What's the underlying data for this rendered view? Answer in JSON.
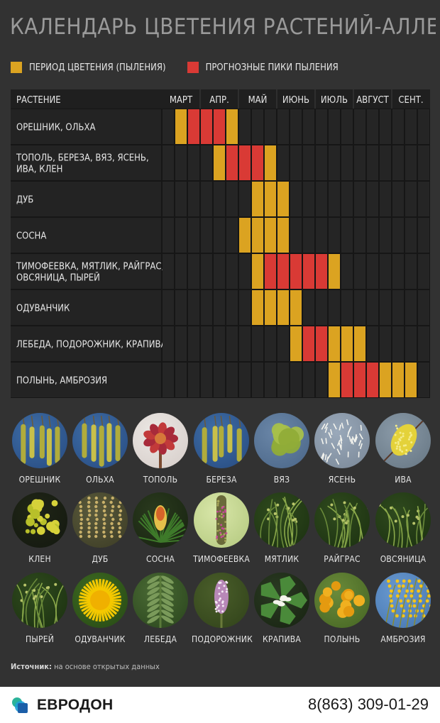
{
  "header": {
    "title": "КАЛЕНДАРЬ ЦВЕТЕНИЯ РАСТЕНИЙ-АЛЛЕРГЕНОВ"
  },
  "legend": {
    "bloom_label": "ПЕРИОД ЦВЕТЕНИЯ (ПЫЛЕНИЯ)",
    "peak_label": "ПРОГНОЗНЫЕ ПИКИ ПЫЛЕНИЯ"
  },
  "colors": {
    "bloom": "#dba321",
    "peak": "#d93a35",
    "empty": "#252525"
  },
  "chart_data": {
    "type": "table",
    "row_header": "РАСТЕНИЕ",
    "months": [
      "МАРТ",
      "АПР.",
      "МАЙ",
      "ИЮНЬ",
      "ИЮЛЬ",
      "АВГУСТ",
      "СЕНТ."
    ],
    "weeks_per_month": 3,
    "legend": {
      "B": "ПЕРИОД ЦВЕТЕНИЯ (ПЫЛЕНИЯ)",
      "P": "ПРОГНОЗНЫЕ ПИКИ ПЫЛЕНИЯ",
      "-": ""
    },
    "rows": [
      {
        "plant": [
          "ОРЕШНИК, ОЛЬХА"
        ],
        "periods": "-BPPPB---------------"
      },
      {
        "plant": [
          "ТОПОЛЬ, БЕРЕЗА, ВЯЗ, ЯСЕНЬ,",
          "ИВА, КЛЕН"
        ],
        "periods": "----BPPPB------------"
      },
      {
        "plant": [
          "ДУБ"
        ],
        "periods": "-------BBB-----------"
      },
      {
        "plant": [
          "СОСНА"
        ],
        "periods": "------BBBB-----------"
      },
      {
        "plant": [
          "ТИМОФЕЕВКА, МЯТЛИК, РАЙГРАС,",
          "ОВСЯНИЦА, ПЫРЕЙ"
        ],
        "periods": "-------BPPPPPB-------"
      },
      {
        "plant": [
          "ОДУВАНЧИК"
        ],
        "periods": "-------BBBB----------"
      },
      {
        "plant": [
          "ЛЕБЕДА, ПОДОРОЖНИК, КРАПИВА"
        ],
        "periods": "----------BPPBBB-----"
      },
      {
        "plant": [
          "ПОЛЫНЬ, АМБРОЗИЯ"
        ],
        "periods": "-------------BPPPBBB-"
      }
    ]
  },
  "gallery": [
    {
      "name": "ОРЕШНИК",
      "icon": "catkins-icon"
    },
    {
      "name": "ОЛЬХА",
      "icon": "catkins-icon"
    },
    {
      "name": "ТОПОЛЬ",
      "icon": "poplar-icon"
    },
    {
      "name": "БЕРЕЗА",
      "icon": "catkins-icon"
    },
    {
      "name": "ВЯЗ",
      "icon": "elm-icon"
    },
    {
      "name": "ЯСЕНЬ",
      "icon": "ash-icon"
    },
    {
      "name": "ИВА",
      "icon": "willow-icon"
    },
    {
      "name": "КЛЕН",
      "icon": "maple-icon"
    },
    {
      "name": "ДУБ",
      "icon": "oak-icon"
    },
    {
      "name": "СОСНА",
      "icon": "pine-icon"
    },
    {
      "name": "ТИМОФЕЕВКА",
      "icon": "spike-icon"
    },
    {
      "name": "МЯТЛИК",
      "icon": "grass-icon"
    },
    {
      "name": "РАЙГРАС",
      "icon": "grass-icon"
    },
    {
      "name": "ОВСЯНИЦА",
      "icon": "grass-icon"
    },
    {
      "name": "ПЫРЕЙ",
      "icon": "grass-icon"
    },
    {
      "name": "ОДУВАНЧИК",
      "icon": "dandelion-icon"
    },
    {
      "name": "ЛЕБЕДА",
      "icon": "orache-icon"
    },
    {
      "name": "ПОДОРОЖНИК",
      "icon": "plantain-icon"
    },
    {
      "name": "КРАПИВА",
      "icon": "nettle-icon"
    },
    {
      "name": "ПОЛЫНЬ",
      "icon": "tansy-icon"
    },
    {
      "name": "АМБРОЗИЯ",
      "icon": "goldenrod-icon"
    }
  ],
  "footer": {
    "source_label": "Источник:",
    "source_text": " на основе открытых данных",
    "logo_text": "ЕВРОДОН",
    "phone": "8(863) 309-01-29"
  }
}
